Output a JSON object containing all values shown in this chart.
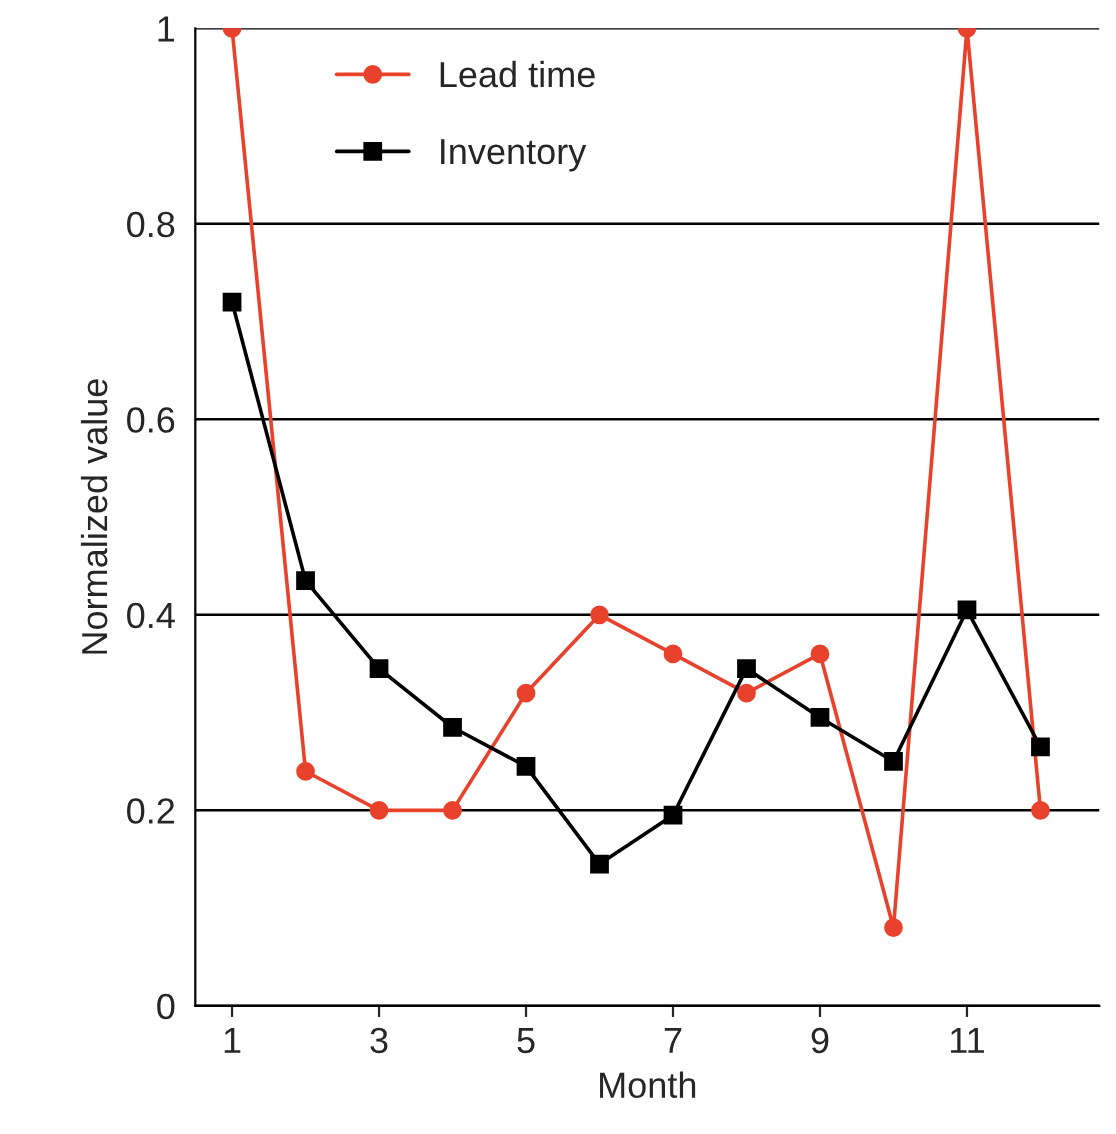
{
  "chart_data": {
    "type": "line",
    "xlabel": "Month",
    "ylabel": "Normalized value",
    "x": [
      1,
      2,
      3,
      4,
      5,
      6,
      7,
      8,
      9,
      10,
      11,
      12
    ],
    "xlim": [
      0.5,
      12.8
    ],
    "xticks": [
      1,
      3,
      5,
      7,
      9,
      11
    ],
    "ylim": [
      0,
      1
    ],
    "yticks": [
      0,
      0.2,
      0.4,
      0.6,
      0.8,
      1
    ],
    "grid": "y",
    "legend": "top",
    "line_style": "solid",
    "series": [
      {
        "name": "Lead time",
        "color": "#e8412c",
        "marker": "circle",
        "values": [
          1.0,
          0.24,
          0.2,
          0.2,
          0.32,
          0.4,
          0.36,
          0.32,
          0.36,
          0.08,
          1.0,
          0.2
        ]
      },
      {
        "name": "Inventory",
        "color": "#000000",
        "marker": "square",
        "values": [
          0.72,
          0.435,
          0.345,
          0.285,
          0.245,
          0.145,
          0.195,
          0.345,
          0.295,
          0.25,
          0.405,
          0.265
        ]
      }
    ]
  }
}
